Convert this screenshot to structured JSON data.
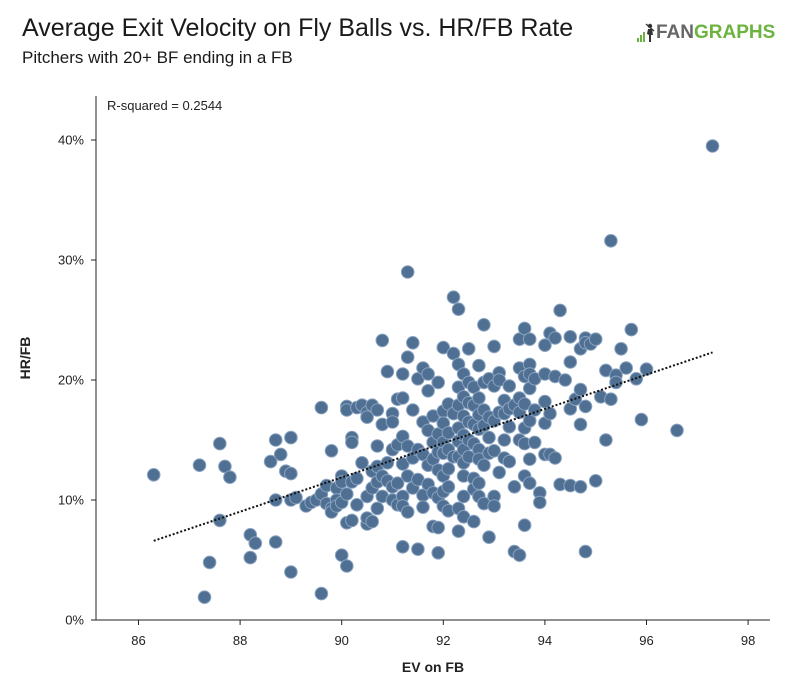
{
  "header": {
    "title": "Average Exit Velocity on Fly Balls vs. HR/FB Rate",
    "subtitle": "Pitchers with 20+ BF ending in a FB"
  },
  "logo": {
    "text_fan": "FAN",
    "text_graphs": "GRAPHS",
    "colors": {
      "fan": "#666666",
      "graphs": "#6db33f"
    }
  },
  "colors": {
    "point_fill": "#4f6f93",
    "point_stroke": "#8aa3c0",
    "trendline": "#111111",
    "axis": "#222222"
  },
  "chart_data": {
    "type": "scatter",
    "title": "Average Exit Velocity on Fly Balls vs. HR/FB Rate",
    "subtitle": "Pitchers with 20+ BF ending in a FB",
    "xlabel": "EV on FB",
    "ylabel": "HR/FB",
    "xlim": [
      85,
      98
    ],
    "ylim": [
      0,
      42
    ],
    "xticks": [
      86,
      88,
      90,
      92,
      94,
      96,
      98
    ],
    "yticks": [
      0,
      10,
      20,
      30,
      40
    ],
    "ytick_labels": [
      "0%",
      "10%",
      "20%",
      "30%",
      "40%"
    ],
    "grid": false,
    "annotation": "R-squared = 0.2544",
    "trendline": {
      "style": "dotted",
      "x": [
        86.3,
        97.3
      ],
      "y": [
        6.6,
        22.3
      ]
    },
    "points": [
      [
        86.3,
        12.1
      ],
      [
        87.2,
        12.9
      ],
      [
        87.3,
        1.9
      ],
      [
        87.4,
        4.8
      ],
      [
        87.6,
        14.7
      ],
      [
        87.6,
        8.3
      ],
      [
        87.7,
        12.8
      ],
      [
        87.8,
        11.9
      ],
      [
        88.2,
        7.1
      ],
      [
        88.2,
        5.2
      ],
      [
        88.3,
        6.4
      ],
      [
        88.6,
        13.2
      ],
      [
        88.7,
        15.0
      ],
      [
        88.7,
        10.0
      ],
      [
        88.7,
        6.5
      ],
      [
        88.8,
        13.8
      ],
      [
        88.9,
        12.4
      ],
      [
        89.0,
        15.2
      ],
      [
        89.0,
        12.2
      ],
      [
        89.0,
        10.0
      ],
      [
        89.0,
        4.0
      ],
      [
        89.1,
        10.2
      ],
      [
        89.3,
        9.5
      ],
      [
        89.4,
        9.8
      ],
      [
        89.5,
        10.0
      ],
      [
        89.6,
        17.7
      ],
      [
        89.6,
        10.5
      ],
      [
        89.6,
        2.2
      ],
      [
        89.7,
        11.2
      ],
      [
        89.7,
        9.7
      ],
      [
        89.8,
        14.1
      ],
      [
        89.8,
        9.3
      ],
      [
        89.8,
        9.0
      ],
      [
        89.9,
        11.0
      ],
      [
        89.9,
        10.0
      ],
      [
        89.9,
        9.5
      ],
      [
        90.0,
        12.0
      ],
      [
        90.0,
        11.5
      ],
      [
        90.0,
        9.8
      ],
      [
        90.0,
        5.4
      ],
      [
        90.1,
        17.8
      ],
      [
        90.1,
        17.5
      ],
      [
        90.1,
        10.5
      ],
      [
        90.1,
        8.1
      ],
      [
        90.1,
        4.5
      ],
      [
        90.2,
        15.2
      ],
      [
        90.2,
        14.8
      ],
      [
        90.2,
        11.5
      ],
      [
        90.2,
        8.3
      ],
      [
        90.3,
        17.7
      ],
      [
        90.3,
        11.8
      ],
      [
        90.3,
        9.6
      ],
      [
        90.4,
        17.9
      ],
      [
        90.4,
        13.1
      ],
      [
        90.5,
        17.3
      ],
      [
        90.5,
        16.9
      ],
      [
        90.5,
        10.3
      ],
      [
        90.5,
        8.0
      ],
      [
        90.5,
        8.5
      ],
      [
        90.6,
        17.9
      ],
      [
        90.6,
        12.4
      ],
      [
        90.6,
        11.0
      ],
      [
        90.6,
        8.2
      ],
      [
        90.7,
        17.5
      ],
      [
        90.7,
        14.5
      ],
      [
        90.7,
        12.8
      ],
      [
        90.7,
        11.5
      ],
      [
        90.7,
        9.3
      ],
      [
        90.8,
        23.3
      ],
      [
        90.8,
        16.3
      ],
      [
        90.8,
        12.0
      ],
      [
        90.8,
        10.3
      ],
      [
        90.9,
        20.7
      ],
      [
        90.9,
        13.1
      ],
      [
        90.9,
        11.6
      ],
      [
        91.0,
        17.2
      ],
      [
        91.0,
        16.5
      ],
      [
        91.0,
        14.2
      ],
      [
        91.0,
        11.1
      ],
      [
        91.0,
        10.0
      ],
      [
        91.1,
        18.4
      ],
      [
        91.1,
        14.6
      ],
      [
        91.1,
        11.4
      ],
      [
        91.1,
        9.6
      ],
      [
        91.2,
        20.5
      ],
      [
        91.2,
        18.5
      ],
      [
        91.2,
        15.3
      ],
      [
        91.2,
        13.0
      ],
      [
        91.2,
        10.3
      ],
      [
        91.2,
        9.5
      ],
      [
        91.2,
        6.1
      ],
      [
        91.3,
        29.0
      ],
      [
        91.3,
        21.9
      ],
      [
        91.3,
        14.5
      ],
      [
        91.3,
        12.0
      ],
      [
        91.3,
        9.0
      ],
      [
        91.4,
        23.1
      ],
      [
        91.4,
        17.5
      ],
      [
        91.4,
        13.5
      ],
      [
        91.4,
        11.0
      ],
      [
        91.5,
        20.1
      ],
      [
        91.5,
        14.2
      ],
      [
        91.5,
        11.7
      ],
      [
        91.5,
        5.9
      ],
      [
        91.6,
        21.0
      ],
      [
        91.6,
        16.5
      ],
      [
        91.6,
        13.8
      ],
      [
        91.6,
        10.4
      ],
      [
        91.6,
        9.4
      ],
      [
        91.7,
        20.5
      ],
      [
        91.7,
        19.1
      ],
      [
        91.7,
        15.8
      ],
      [
        91.7,
        12.9
      ],
      [
        91.7,
        11.3
      ],
      [
        91.8,
        17.0
      ],
      [
        91.8,
        14.8
      ],
      [
        91.8,
        13.4
      ],
      [
        91.8,
        10.6
      ],
      [
        91.8,
        7.8
      ],
      [
        91.9,
        19.8
      ],
      [
        91.9,
        15.5
      ],
      [
        91.9,
        14.0
      ],
      [
        91.9,
        12.5
      ],
      [
        91.9,
        10.2
      ],
      [
        91.9,
        7.7
      ],
      [
        91.9,
        5.6
      ],
      [
        92.0,
        22.7
      ],
      [
        92.0,
        17.4
      ],
      [
        92.0,
        16.4
      ],
      [
        92.0,
        14.8
      ],
      [
        92.0,
        13.9
      ],
      [
        92.0,
        12.0
      ],
      [
        92.0,
        10.7
      ],
      [
        92.0,
        9.5
      ],
      [
        92.1,
        18.0
      ],
      [
        92.1,
        15.6
      ],
      [
        92.1,
        14.2
      ],
      [
        92.1,
        12.6
      ],
      [
        92.1,
        11.1
      ],
      [
        92.1,
        9.1
      ],
      [
        92.2,
        26.9
      ],
      [
        92.2,
        22.2
      ],
      [
        92.2,
        17.2
      ],
      [
        92.2,
        13.6
      ],
      [
        92.3,
        25.9
      ],
      [
        92.3,
        21.3
      ],
      [
        92.3,
        19.4
      ],
      [
        92.3,
        17.9
      ],
      [
        92.3,
        16.0
      ],
      [
        92.3,
        14.9
      ],
      [
        92.3,
        13.6
      ],
      [
        92.3,
        9.3
      ],
      [
        92.3,
        7.4
      ],
      [
        92.4,
        20.5
      ],
      [
        92.4,
        18.6
      ],
      [
        92.4,
        17.0
      ],
      [
        92.4,
        15.4
      ],
      [
        92.4,
        14.2
      ],
      [
        92.4,
        13.1
      ],
      [
        92.4,
        12.0
      ],
      [
        92.4,
        10.3
      ],
      [
        92.4,
        8.6
      ],
      [
        92.5,
        22.6
      ],
      [
        92.5,
        19.8
      ],
      [
        92.5,
        18.1
      ],
      [
        92.5,
        16.5
      ],
      [
        92.5,
        15.0
      ],
      [
        92.5,
        13.6
      ],
      [
        92.6,
        19.4
      ],
      [
        92.6,
        17.9
      ],
      [
        92.6,
        16.3
      ],
      [
        92.6,
        14.7
      ],
      [
        92.6,
        11.8
      ],
      [
        92.6,
        10.9
      ],
      [
        92.6,
        8.2
      ],
      [
        92.7,
        21.2
      ],
      [
        92.7,
        18.5
      ],
      [
        92.7,
        17.1
      ],
      [
        92.7,
        15.9
      ],
      [
        92.7,
        14.2
      ],
      [
        92.7,
        13.4
      ],
      [
        92.7,
        11.4
      ],
      [
        92.7,
        10.3
      ],
      [
        92.8,
        24.6
      ],
      [
        92.8,
        19.8
      ],
      [
        92.8,
        17.5
      ],
      [
        92.8,
        16.2
      ],
      [
        92.8,
        12.9
      ],
      [
        92.8,
        9.7
      ],
      [
        92.9,
        20.1
      ],
      [
        92.9,
        16.9
      ],
      [
        92.9,
        15.2
      ],
      [
        92.9,
        13.9
      ],
      [
        92.9,
        6.9
      ],
      [
        93.0,
        22.8
      ],
      [
        93.0,
        19.5
      ],
      [
        93.0,
        16.6
      ],
      [
        93.0,
        14.1
      ],
      [
        93.0,
        10.3
      ],
      [
        93.0,
        9.5
      ],
      [
        93.1,
        20.6
      ],
      [
        93.1,
        20.0
      ],
      [
        93.1,
        17.3
      ],
      [
        93.1,
        12.3
      ],
      [
        93.2,
        18.3
      ],
      [
        93.2,
        17.2
      ],
      [
        93.2,
        15.0
      ],
      [
        93.2,
        13.5
      ],
      [
        93.3,
        19.5
      ],
      [
        93.3,
        17.6
      ],
      [
        93.3,
        16.1
      ],
      [
        93.3,
        13.2
      ],
      [
        93.4,
        17.9
      ],
      [
        93.4,
        11.1
      ],
      [
        93.4,
        5.7
      ],
      [
        93.5,
        23.4
      ],
      [
        93.5,
        21.0
      ],
      [
        93.5,
        18.5
      ],
      [
        93.5,
        17.3
      ],
      [
        93.5,
        15.0
      ],
      [
        93.5,
        5.4
      ],
      [
        93.6,
        24.3
      ],
      [
        93.6,
        20.3
      ],
      [
        93.6,
        18.0
      ],
      [
        93.6,
        16.0
      ],
      [
        93.6,
        14.7
      ],
      [
        93.6,
        12.0
      ],
      [
        93.6,
        7.9
      ],
      [
        93.7,
        23.4
      ],
      [
        93.7,
        21.3
      ],
      [
        93.7,
        20.5
      ],
      [
        93.7,
        19.3
      ],
      [
        93.7,
        16.6
      ],
      [
        93.7,
        13.4
      ],
      [
        93.7,
        11.4
      ],
      [
        93.8,
        20.1
      ],
      [
        93.8,
        17.5
      ],
      [
        93.8,
        14.8
      ],
      [
        93.9,
        10.6
      ],
      [
        93.9,
        9.8
      ],
      [
        94.0,
        22.9
      ],
      [
        94.0,
        20.5
      ],
      [
        94.0,
        18.2
      ],
      [
        94.0,
        16.4
      ],
      [
        94.0,
        13.8
      ],
      [
        94.1,
        23.9
      ],
      [
        94.1,
        17.2
      ],
      [
        94.1,
        13.8
      ],
      [
        94.2,
        23.5
      ],
      [
        94.2,
        20.3
      ],
      [
        94.2,
        13.5
      ],
      [
        94.3,
        25.8
      ],
      [
        94.3,
        11.3
      ],
      [
        94.4,
        20.0
      ],
      [
        94.5,
        23.6
      ],
      [
        94.5,
        21.5
      ],
      [
        94.5,
        17.6
      ],
      [
        94.5,
        11.2
      ],
      [
        94.6,
        18.4
      ],
      [
        94.7,
        22.6
      ],
      [
        94.7,
        19.2
      ],
      [
        94.7,
        16.3
      ],
      [
        94.7,
        11.1
      ],
      [
        94.8,
        23.5
      ],
      [
        94.8,
        23.1
      ],
      [
        94.8,
        17.8
      ],
      [
        94.8,
        5.7
      ],
      [
        94.9,
        23.0
      ],
      [
        95.0,
        23.4
      ],
      [
        95.0,
        11.6
      ],
      [
        95.1,
        18.6
      ],
      [
        95.2,
        20.8
      ],
      [
        95.2,
        15.0
      ],
      [
        95.3,
        31.6
      ],
      [
        95.3,
        18.4
      ],
      [
        95.4,
        20.4
      ],
      [
        95.4,
        19.8
      ],
      [
        95.5,
        22.6
      ],
      [
        95.6,
        21.0
      ],
      [
        95.7,
        24.2
      ],
      [
        95.8,
        20.1
      ],
      [
        95.9,
        16.7
      ],
      [
        96.0,
        20.9
      ],
      [
        96.6,
        15.8
      ],
      [
        97.3,
        39.5
      ]
    ]
  }
}
